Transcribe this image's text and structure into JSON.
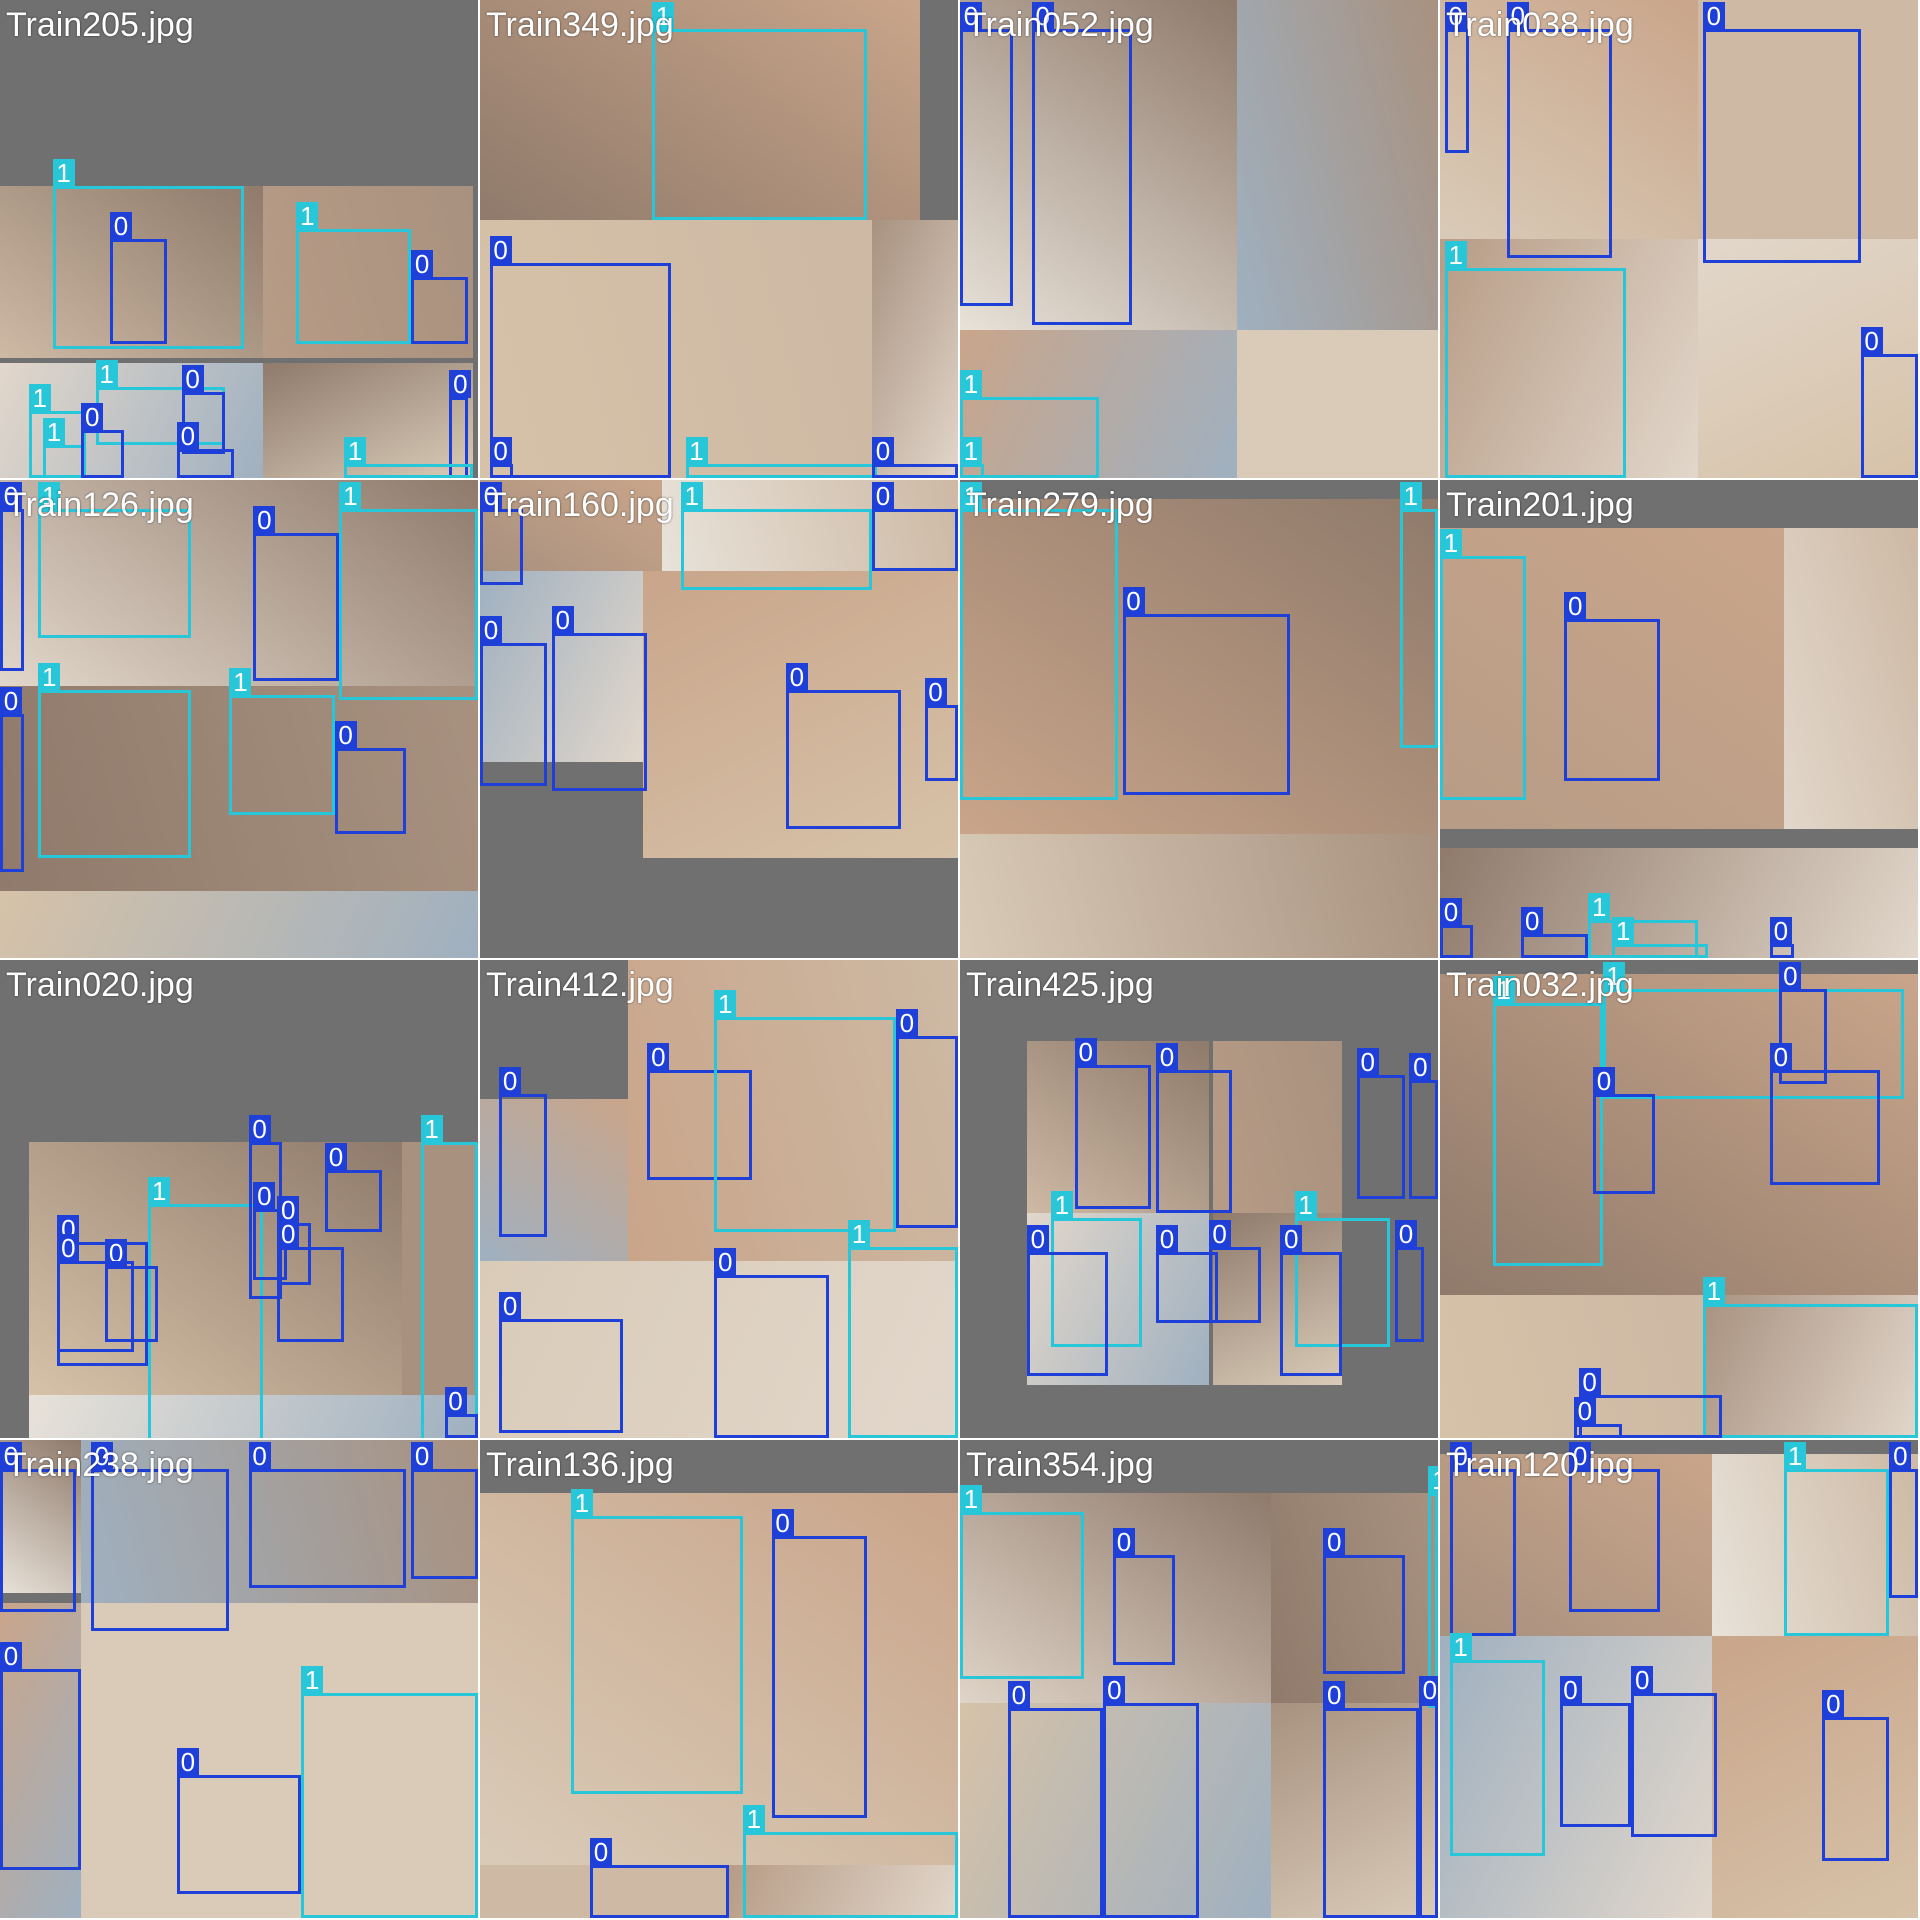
{
  "title": "",
  "colors": {
    "class_0": "#1f3fd9",
    "class_1": "#27c6d9",
    "tile_background": "#707070",
    "photo_tones": [
      "#cdb9a4",
      "#b79c86",
      "#e2d7cb",
      "#8f7a6b",
      "#d6c2a8",
      "#a8917f",
      "#e8e2d9",
      "#9fb0c0",
      "#c9a58a",
      "#d9cbb8"
    ]
  },
  "tiles": [
    {
      "title": "Train205.jpg",
      "photos": [
        [
          0,
          0.39,
          0.55,
          0.36
        ],
        [
          0.55,
          0.39,
          0.44,
          0.36
        ],
        [
          0,
          0.76,
          0.55,
          0.24
        ],
        [
          0.55,
          0.76,
          0.44,
          0.24
        ]
      ],
      "boxes": [
        [
          1,
          0.11,
          0.39,
          0.4,
          0.34
        ],
        [
          0,
          0.23,
          0.5,
          0.12,
          0.22
        ],
        [
          1,
          0.62,
          0.48,
          0.24,
          0.24
        ],
        [
          0,
          0.86,
          0.58,
          0.12,
          0.14
        ],
        [
          1,
          0.2,
          0.81,
          0.27,
          0.12
        ],
        [
          0,
          0.38,
          0.82,
          0.09,
          0.13
        ],
        [
          1,
          0.06,
          0.86,
          0.12,
          0.14
        ],
        [
          1,
          0.09,
          0.93,
          0.09,
          0.07
        ],
        [
          0,
          0.17,
          0.9,
          0.09,
          0.1
        ],
        [
          0,
          0.37,
          0.94,
          0.12,
          0.06
        ],
        [
          0,
          0.94,
          0.83,
          0.04,
          0.17
        ],
        [
          1,
          0.72,
          0.97,
          0.27,
          0.03
        ]
      ]
    },
    {
      "title": "Train349.jpg",
      "photos": [
        [
          0,
          0,
          0.92,
          0.46
        ],
        [
          0,
          0.46,
          0.82,
          0.54
        ],
        [
          0.82,
          0.46,
          0.18,
          0.54
        ]
      ],
      "boxes": [
        [
          1,
          0.36,
          0,
          0.45,
          0.4
        ],
        [
          0,
          0.02,
          0.55,
          0.38,
          0.45
        ],
        [
          0,
          0.02,
          0.97,
          0.05,
          0.03
        ],
        [
          1,
          0.43,
          0.97,
          0.4,
          0.03
        ],
        [
          0,
          0.82,
          0.97,
          0.18,
          0.03
        ]
      ]
    },
    {
      "title": "Train052.jpg",
      "photos": [
        [
          0,
          0,
          0.58,
          0.69
        ],
        [
          0.58,
          0,
          0.42,
          0.69
        ],
        [
          0,
          0.69,
          0.58,
          0.31
        ],
        [
          0.58,
          0.69,
          0.42,
          0.31
        ]
      ],
      "boxes": [
        [
          0,
          0,
          0.01,
          0.11,
          0.58
        ],
        [
          0,
          0.15,
          0.01,
          0.21,
          0.62
        ],
        [
          1,
          0,
          0.83,
          0.29,
          0.17
        ],
        [
          1,
          0,
          0.97,
          0.05,
          0.03
        ]
      ]
    },
    {
      "title": "Train038.jpg",
      "photos": [
        [
          0,
          0,
          0.54,
          0.5
        ],
        [
          0.54,
          0,
          0.46,
          0.5
        ],
        [
          0,
          0.5,
          0.54,
          0.5
        ],
        [
          0.54,
          0.5,
          0.46,
          0.5
        ]
      ],
      "boxes": [
        [
          0,
          0.01,
          0.01,
          0.05,
          0.26
        ],
        [
          0,
          0.14,
          0.01,
          0.22,
          0.48
        ],
        [
          0,
          0.55,
          0.01,
          0.33,
          0.49
        ],
        [
          1,
          0.01,
          0.56,
          0.38,
          0.44
        ],
        [
          0,
          0.88,
          0.74,
          0.12,
          0.26
        ]
      ]
    },
    {
      "title": "Train126.jpg",
      "photos": [
        [
          0,
          0,
          1,
          0.43
        ],
        [
          0,
          0.43,
          1,
          0.43
        ],
        [
          0,
          0.86,
          1,
          0.14
        ]
      ],
      "boxes": [
        [
          0,
          0,
          0.02,
          0.05,
          0.34
        ],
        [
          1,
          0.08,
          0.04,
          0.32,
          0.27
        ],
        [
          0,
          0.53,
          0.11,
          0.18,
          0.31
        ],
        [
          1,
          0.71,
          0,
          0.29,
          0.4
        ],
        [
          0,
          0,
          0.49,
          0.05,
          0.33
        ],
        [
          1,
          0.08,
          0.44,
          0.32,
          0.35
        ],
        [
          1,
          0.48,
          0.45,
          0.22,
          0.25
        ],
        [
          0,
          0.7,
          0.56,
          0.15,
          0.18
        ]
      ]
    },
    {
      "title": "Train160.jpg",
      "photos": [
        [
          0,
          0,
          0.38,
          0.19
        ],
        [
          0.38,
          0,
          0.62,
          0.19
        ],
        [
          0,
          0.19,
          0.34,
          0.4
        ],
        [
          0.34,
          0.19,
          0.66,
          0.6
        ]
      ],
      "boxes": [
        [
          0,
          0,
          0,
          0.09,
          0.16
        ],
        [
          1,
          0.42,
          0,
          0.4,
          0.17
        ],
        [
          0,
          0.82,
          0,
          0.18,
          0.13
        ],
        [
          0,
          0,
          0.34,
          0.14,
          0.3
        ],
        [
          0,
          0.15,
          0.32,
          0.2,
          0.33
        ],
        [
          0,
          0.64,
          0.44,
          0.24,
          0.29
        ],
        [
          0,
          0.93,
          0.47,
          0.07,
          0.16
        ]
      ]
    },
    {
      "title": "Train279.jpg",
      "photos": [
        [
          0,
          0.04,
          1,
          0.7
        ],
        [
          0,
          0.74,
          1,
          0.26
        ]
      ],
      "boxes": [
        [
          1,
          0,
          0.05,
          0.33,
          0.61
        ],
        [
          0,
          0.34,
          0.28,
          0.35,
          0.38
        ],
        [
          1,
          0.92,
          0.04,
          0.08,
          0.5
        ]
      ]
    },
    {
      "title": "Train201.jpg",
      "photos": [
        [
          0,
          0.1,
          0.72,
          0.63
        ],
        [
          0.72,
          0.1,
          0.28,
          0.63
        ],
        [
          0,
          0.77,
          1,
          0.23
        ]
      ],
      "boxes": [
        [
          1,
          0,
          0.16,
          0.18,
          0.51
        ],
        [
          0,
          0.26,
          0.29,
          0.2,
          0.34
        ],
        [
          0,
          0,
          0.93,
          0.07,
          0.07
        ],
        [
          0,
          0.17,
          0.95,
          0.14,
          0.05
        ],
        [
          1,
          0.31,
          0.92,
          0.23,
          0.08
        ],
        [
          1,
          0.36,
          0.97,
          0.2,
          0.03
        ],
        [
          0,
          0.69,
          0.97,
          0.05,
          0.03
        ]
      ]
    },
    {
      "title": "Train020.jpg",
      "photos": [
        [
          0.06,
          0.38,
          0.78,
          0.53
        ],
        [
          0.84,
          0.38,
          0.16,
          0.53
        ],
        [
          0.06,
          0.91,
          0.94,
          0.09
        ]
      ],
      "boxes": [
        [
          0,
          0.12,
          0.59,
          0.19,
          0.26
        ],
        [
          1,
          0.31,
          0.51,
          0.24,
          0.56
        ],
        [
          0,
          0.22,
          0.64,
          0.11,
          0.16
        ],
        [
          0,
          0.12,
          0.63,
          0.16,
          0.19
        ],
        [
          0,
          0.52,
          0.38,
          0.07,
          0.33
        ],
        [
          0,
          0.53,
          0.52,
          0.07,
          0.15
        ],
        [
          0,
          0.58,
          0.55,
          0.07,
          0.13
        ],
        [
          0,
          0.58,
          0.6,
          0.14,
          0.2
        ],
        [
          0,
          0.68,
          0.44,
          0.12,
          0.13
        ],
        [
          1,
          0.88,
          0.38,
          0.12,
          0.7
        ],
        [
          0,
          0.93,
          0.95,
          0.07,
          0.05
        ]
      ]
    },
    {
      "title": "Train412.jpg",
      "photos": [
        [
          0,
          0.29,
          0.31,
          0.34
        ],
        [
          0.31,
          0,
          0.69,
          0.63
        ],
        [
          0,
          0.63,
          1,
          0.37
        ]
      ],
      "boxes": [
        [
          0,
          0.04,
          0.28,
          0.1,
          0.3
        ],
        [
          0,
          0.35,
          0.23,
          0.22,
          0.23
        ],
        [
          1,
          0.49,
          0.12,
          0.38,
          0.45
        ],
        [
          0,
          0.87,
          0.16,
          0.13,
          0.4
        ],
        [
          0,
          0.04,
          0.75,
          0.26,
          0.24
        ],
        [
          0,
          0.49,
          0.66,
          0.24,
          0.34
        ],
        [
          1,
          0.77,
          0.6,
          0.23,
          0.4
        ]
      ]
    },
    {
      "title": "Train425.jpg",
      "photos": [
        [
          0.14,
          0.17,
          0.38,
          0.36
        ],
        [
          0.53,
          0.17,
          0.27,
          0.36
        ],
        [
          0.14,
          0.53,
          0.38,
          0.36
        ],
        [
          0.53,
          0.53,
          0.27,
          0.36
        ]
      ],
      "boxes": [
        [
          0,
          0.24,
          0.22,
          0.16,
          0.3
        ],
        [
          0,
          0.41,
          0.23,
          0.16,
          0.3
        ],
        [
          0,
          0.83,
          0.24,
          0.1,
          0.26
        ],
        [
          0,
          0.94,
          0.25,
          0.06,
          0.25
        ],
        [
          1,
          0.19,
          0.54,
          0.19,
          0.27
        ],
        [
          0,
          0.14,
          0.61,
          0.17,
          0.26
        ],
        [
          0,
          0.41,
          0.61,
          0.13,
          0.15
        ],
        [
          0,
          0.52,
          0.6,
          0.11,
          0.16
        ],
        [
          1,
          0.7,
          0.54,
          0.2,
          0.27
        ],
        [
          0,
          0.67,
          0.61,
          0.13,
          0.26
        ],
        [
          0,
          0.91,
          0.6,
          0.06,
          0.2
        ]
      ]
    },
    {
      "title": "Train032.jpg",
      "photos": [
        [
          0,
          0.03,
          1,
          0.67
        ],
        [
          0,
          0.7,
          0.55,
          0.3
        ],
        [
          0.55,
          0.7,
          0.45,
          0.3
        ]
      ],
      "boxes": [
        [
          1,
          0.11,
          0.09,
          0.23,
          0.55
        ],
        [
          1,
          0.34,
          0,
          0.63,
          0.23
        ],
        [
          0,
          0.32,
          0.28,
          0.13,
          0.21
        ],
        [
          0,
          0.71,
          0.03,
          0.1,
          0.2
        ],
        [
          0,
          0.69,
          0.23,
          0.23,
          0.24
        ],
        [
          1,
          0.55,
          0.72,
          0.45,
          0.28
        ],
        [
          0,
          0.29,
          0.91,
          0.3,
          0.09
        ],
        [
          0,
          0.28,
          0.97,
          0.1,
          0.03
        ]
      ]
    },
    {
      "title": "Train238.jpg",
      "photos": [
        [
          0,
          0,
          0.17,
          0.32
        ],
        [
          0.17,
          0,
          0.83,
          0.34
        ],
        [
          0,
          0.34,
          0.17,
          0.66
        ],
        [
          0.17,
          0.34,
          0.83,
          0.66
        ]
      ],
      "boxes": [
        [
          0,
          0,
          0,
          0.16,
          0.3
        ],
        [
          0,
          0.19,
          0,
          0.29,
          0.34
        ],
        [
          0,
          0.52,
          0,
          0.33,
          0.25
        ],
        [
          0,
          0.86,
          0,
          0.14,
          0.23
        ],
        [
          0,
          0,
          0.48,
          0.17,
          0.42
        ],
        [
          0,
          0.37,
          0.7,
          0.26,
          0.25
        ],
        [
          1,
          0.63,
          0.53,
          0.37,
          0.47
        ]
      ]
    },
    {
      "title": "Train136.jpg",
      "photos": [
        [
          0,
          0.11,
          1,
          0.78
        ],
        [
          0,
          0.89,
          0.52,
          0.11
        ],
        [
          0.52,
          0.89,
          0.48,
          0.11
        ]
      ],
      "boxes": [
        [
          1,
          0.19,
          0.16,
          0.36,
          0.58
        ],
        [
          0,
          0.61,
          0.2,
          0.2,
          0.59
        ],
        [
          0,
          0.23,
          0.89,
          0.29,
          0.11
        ],
        [
          1,
          0.55,
          0.82,
          0.45,
          0.18
        ]
      ]
    },
    {
      "title": "Train354.jpg",
      "photos": [
        [
          0,
          0.11,
          0.65,
          0.47
        ],
        [
          0.65,
          0.11,
          0.35,
          0.47
        ],
        [
          0,
          0.55,
          0.65,
          0.45
        ],
        [
          0.65,
          0.55,
          0.35,
          0.45
        ]
      ],
      "boxes": [
        [
          1,
          0,
          0.15,
          0.26,
          0.35
        ],
        [
          0,
          0.32,
          0.24,
          0.13,
          0.23
        ],
        [
          0,
          0.76,
          0.24,
          0.17,
          0.25
        ],
        [
          1,
          0.98,
          0.11,
          0.02,
          0.45
        ],
        [
          0,
          0.1,
          0.56,
          0.2,
          0.44
        ],
        [
          0,
          0.3,
          0.55,
          0.2,
          0.45
        ],
        [
          0,
          0.76,
          0.56,
          0.2,
          0.44
        ],
        [
          0,
          0.96,
          0.55,
          0.04,
          0.45
        ]
      ]
    },
    {
      "title": "Train120.jpg",
      "photos": [
        [
          0,
          0.03,
          0.57,
          0.38
        ],
        [
          0.57,
          0.03,
          0.43,
          0.38
        ],
        [
          0,
          0.41,
          0.57,
          0.59
        ],
        [
          0.57,
          0.41,
          0.43,
          0.59
        ]
      ],
      "boxes": [
        [
          0,
          0.02,
          0.04,
          0.14,
          0.35
        ],
        [
          0,
          0.27,
          0.05,
          0.19,
          0.3
        ],
        [
          1,
          0.72,
          0.06,
          0.22,
          0.35
        ],
        [
          0,
          0.94,
          0.05,
          0.06,
          0.27
        ],
        [
          1,
          0.02,
          0.46,
          0.2,
          0.41
        ],
        [
          0,
          0.25,
          0.55,
          0.15,
          0.26
        ],
        [
          0,
          0.4,
          0.53,
          0.18,
          0.3
        ],
        [
          0,
          0.8,
          0.58,
          0.14,
          0.3
        ]
      ]
    }
  ]
}
